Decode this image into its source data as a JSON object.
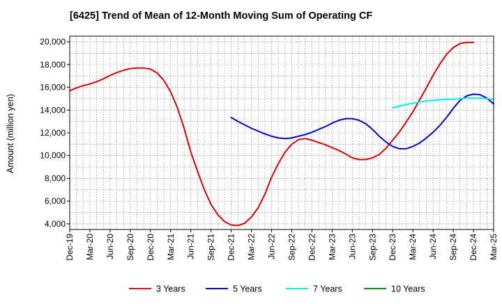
{
  "chart_data": {
    "type": "line",
    "title": "[6425]  Trend of Mean of 12-Month Moving Sum of Operating CF",
    "xlabel": "",
    "ylabel": "Amount (million yen)",
    "ylim": [
      3500,
      20500
    ],
    "yticks": [
      4000,
      6000,
      8000,
      10000,
      12000,
      14000,
      16000,
      18000,
      20000
    ],
    "ytick_labels": [
      "4,000",
      "6,000",
      "8,000",
      "10,000",
      "12,000",
      "14,000",
      "16,000",
      "18,000",
      "20,000"
    ],
    "x_start": "Dec-19",
    "x_end": "Mar-25",
    "xtick_labels": [
      "Dec-19",
      "Mar-20",
      "Jun-20",
      "Sep-20",
      "Dec-20",
      "Mar-21",
      "Jun-21",
      "Sep-21",
      "Dec-21",
      "Mar-22",
      "Jun-22",
      "Sep-22",
      "Dec-22",
      "Mar-23",
      "Jun-23",
      "Sep-23",
      "Dec-23",
      "Mar-24",
      "Jun-24",
      "Sep-24",
      "Dec-24",
      "Mar-25"
    ],
    "grid": true,
    "legend_position": "bottom",
    "series": [
      {
        "name": "3 Years",
        "color": "#dd0000",
        "start": "Dec-19",
        "values": [
          15700,
          15950,
          16150,
          16300,
          16500,
          16750,
          17050,
          17300,
          17500,
          17650,
          17700,
          17700,
          17600,
          17250,
          16600,
          15600,
          14200,
          12400,
          10300,
          8600,
          7000,
          5700,
          4800,
          4200,
          3900,
          3850,
          4050,
          4600,
          5400,
          6600,
          8100,
          9300,
          10300,
          11000,
          11400,
          11500,
          11350,
          11150,
          10950,
          10700,
          10450,
          10150,
          9800,
          9650,
          9650,
          9800,
          10100,
          10650,
          11350,
          12100,
          12950,
          13850,
          14900,
          15950,
          17050,
          18050,
          18900,
          19500,
          19850,
          19950,
          19950
        ]
      },
      {
        "name": "5 Years",
        "color": "#0000cc",
        "start": "Dec-21",
        "values": [
          13350,
          13000,
          12700,
          12400,
          12150,
          11900,
          11700,
          11550,
          11500,
          11550,
          11700,
          11850,
          12050,
          12300,
          12550,
          12850,
          13100,
          13250,
          13250,
          13100,
          12800,
          12300,
          11700,
          11200,
          10800,
          10600,
          10600,
          10800,
          11100,
          11550,
          12050,
          12650,
          13350,
          14150,
          14850,
          15250,
          15400,
          15350,
          15050,
          14550
        ]
      },
      {
        "name": "7 Years",
        "color": "#00eeee",
        "start": "Dec-23",
        "values": [
          14200,
          14350,
          14500,
          14600,
          14700,
          14800,
          14850,
          14900,
          14950,
          14950,
          15000,
          15050,
          15050,
          15050,
          15000,
          14950
        ]
      },
      {
        "name": "10 Years",
        "color": "#008800",
        "start": "Dec-24",
        "values": []
      }
    ]
  }
}
